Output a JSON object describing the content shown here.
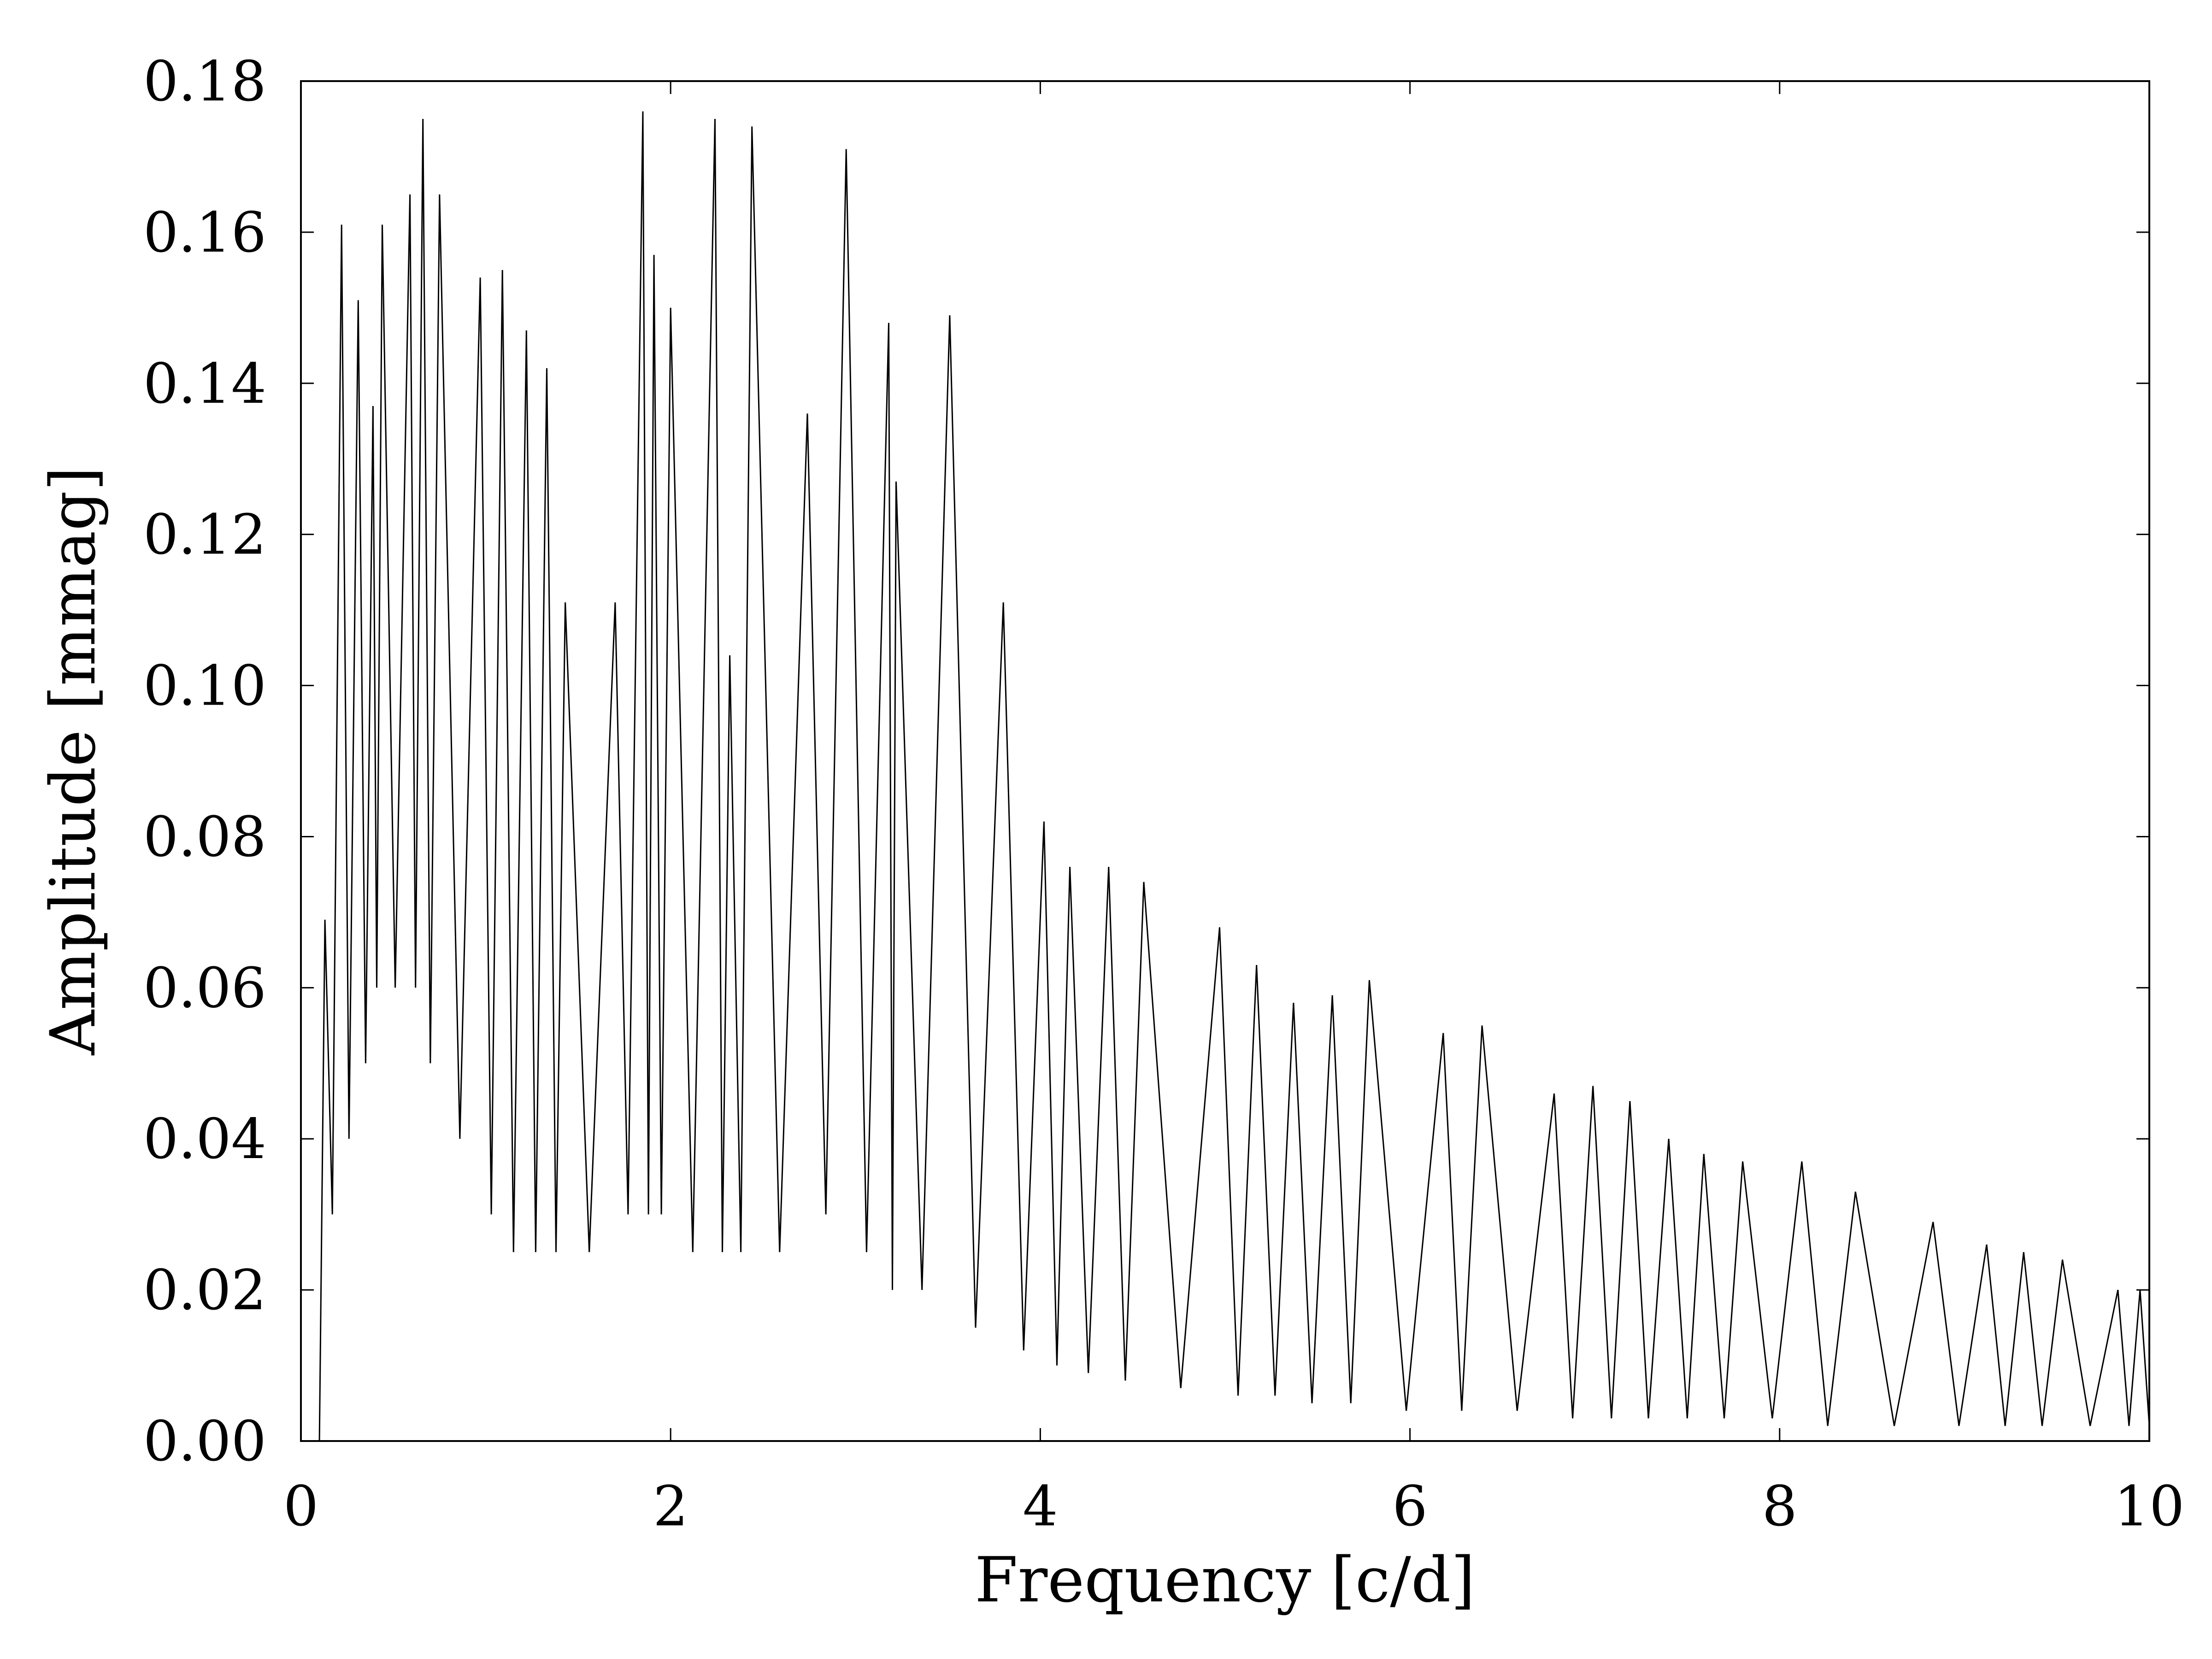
{
  "chart_data": {
    "type": "line",
    "xlabel": "Frequency [c/d]",
    "ylabel": "Amplitude [mmag]",
    "color": "#000000",
    "x": [
      0.1,
      0.13,
      0.17,
      0.22,
      0.26,
      0.31,
      0.35,
      0.39,
      0.41,
      0.44,
      0.51,
      0.59,
      0.62,
      0.66,
      0.7,
      0.75,
      0.86,
      0.97,
      1.03,
      1.09,
      1.15,
      1.22,
      1.27,
      1.33,
      1.38,
      1.43,
      1.56,
      1.7,
      1.77,
      1.85,
      1.88,
      1.91,
      1.95,
      2.0,
      2.12,
      2.24,
      2.28,
      2.32,
      2.38,
      2.44,
      2.59,
      2.74,
      2.84,
      2.95,
      3.06,
      3.18,
      3.2,
      3.22,
      3.36,
      3.51,
      3.65,
      3.8,
      3.91,
      4.02,
      4.09,
      4.16,
      4.26,
      4.37,
      4.46,
      4.56,
      4.76,
      4.97,
      5.07,
      5.17,
      5.27,
      5.37,
      5.47,
      5.58,
      5.68,
      5.78,
      5.98,
      6.18,
      6.28,
      6.39,
      6.58,
      6.78,
      6.88,
      6.99,
      7.09,
      7.19,
      7.29,
      7.4,
      7.5,
      7.59,
      7.7,
      7.8,
      7.96,
      8.12,
      8.26,
      8.41,
      8.62,
      8.83,
      8.97,
      9.12,
      9.22,
      9.32,
      9.42,
      9.53,
      9.68,
      9.83,
      9.89,
      9.95,
      10.0
    ],
    "values": [
      0,
      0.069,
      0.03,
      0.161,
      0.04,
      0.151,
      0.05,
      0.137,
      0.06,
      0.161,
      0.06,
      0.165,
      0.06,
      0.175,
      0.05,
      0.165,
      0.04,
      0.154,
      0.03,
      0.155,
      0.025,
      0.147,
      0.025,
      0.142,
      0.025,
      0.111,
      0.025,
      0.111,
      0.03,
      0.176,
      0.03,
      0.157,
      0.03,
      0.15,
      0.025,
      0.175,
      0.025,
      0.104,
      0.025,
      0.174,
      0.025,
      0.136,
      0.03,
      0.171,
      0.025,
      0.148,
      0.02,
      0.127,
      0.02,
      0.149,
      0.015,
      0.111,
      0.012,
      0.082,
      0.01,
      0.076,
      0.009,
      0.076,
      0.008,
      0.074,
      0.007,
      0.068,
      0.006,
      0.063,
      0.006,
      0.058,
      0.005,
      0.059,
      0.005,
      0.061,
      0.004,
      0.054,
      0.004,
      0.055,
      0.004,
      0.046,
      0.003,
      0.047,
      0.003,
      0.045,
      0.003,
      0.04,
      0.003,
      0.038,
      0.003,
      0.037,
      0.003,
      0.037,
      0.002,
      0.033,
      0.002,
      0.029,
      0.002,
      0.026,
      0.002,
      0.025,
      0.002,
      0.024,
      0.002,
      0.02,
      0.002,
      0.02,
      0.002
    ],
    "xlim": [
      0,
      10
    ],
    "xticks": [
      0,
      2,
      4,
      6,
      8,
      10
    ],
    "ylim": [
      0,
      0.18
    ],
    "yticks": [
      {
        "value": 0,
        "label": "0.00"
      },
      0.02,
      0.04,
      0.06,
      0.08,
      {
        "value": 0.1,
        "label": "0.10"
      },
      0.12,
      0.14,
      0.16,
      0.18
    ],
    "grid": false
  }
}
